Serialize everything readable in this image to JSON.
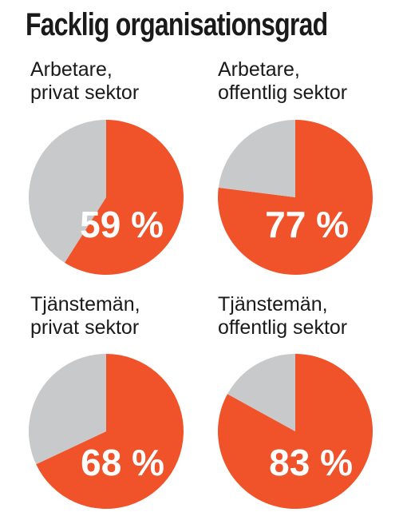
{
  "title": "Facklig organisationsgrad",
  "colors": {
    "share": "#f0522a",
    "remainder": "#c8c9cb",
    "text": "#1a1a1a",
    "value_text": "#ffffff"
  },
  "chart_data": [
    {
      "type": "pie",
      "label_lines": [
        "Arbetare,",
        "privat sektor"
      ],
      "value": 59,
      "value_label": "59 %",
      "unit": "%",
      "slices": [
        {
          "name": "",
          "value": 59,
          "color": "#f0522a"
        },
        {
          "name": "",
          "value": 41,
          "color": "#c8c9cb"
        }
      ]
    },
    {
      "type": "pie",
      "label_lines": [
        "Arbetare,",
        "offentlig sektor"
      ],
      "value": 77,
      "value_label": "77 %",
      "unit": "%",
      "slices": [
        {
          "name": "",
          "value": 77,
          "color": "#f0522a"
        },
        {
          "name": "",
          "value": 23,
          "color": "#c8c9cb"
        }
      ]
    },
    {
      "type": "pie",
      "label_lines": [
        "Tjänstemän,",
        "privat sektor"
      ],
      "value": 68,
      "value_label": "68 %",
      "unit": "%",
      "slices": [
        {
          "name": "",
          "value": 68,
          "color": "#f0522a"
        },
        {
          "name": "",
          "value": 32,
          "color": "#c8c9cb"
        }
      ]
    },
    {
      "type": "pie",
      "label_lines": [
        "Tjänstemän,",
        "offentlig sektor"
      ],
      "value": 83,
      "value_label": "83 %",
      "unit": "%",
      "slices": [
        {
          "name": "",
          "value": 83,
          "color": "#f0522a"
        },
        {
          "name": "",
          "value": 17,
          "color": "#c8c9cb"
        }
      ]
    }
  ]
}
